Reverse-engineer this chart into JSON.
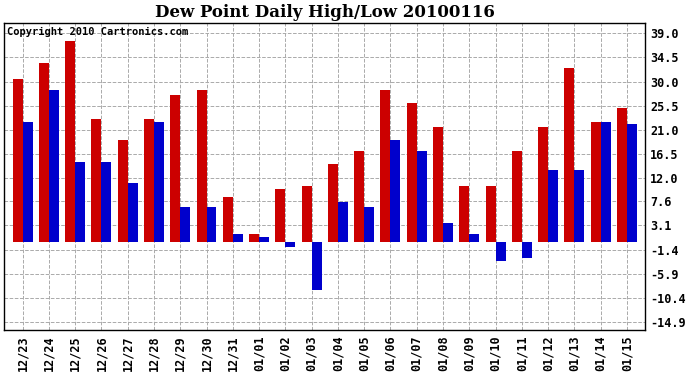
{
  "title": "Dew Point Daily High/Low 20100116",
  "copyright": "Copyright 2010 Cartronics.com",
  "dates": [
    "12/23",
    "12/24",
    "12/25",
    "12/26",
    "12/27",
    "12/28",
    "12/29",
    "12/30",
    "12/31",
    "01/01",
    "01/02",
    "01/03",
    "01/04",
    "01/05",
    "01/06",
    "01/07",
    "01/08",
    "01/09",
    "01/10",
    "01/11",
    "01/12",
    "01/13",
    "01/14",
    "01/15"
  ],
  "highs": [
    30.5,
    33.5,
    37.5,
    23.0,
    19.0,
    23.0,
    27.5,
    28.5,
    8.5,
    1.5,
    10.0,
    10.5,
    14.5,
    17.0,
    28.5,
    26.0,
    21.5,
    10.5,
    10.5,
    17.0,
    21.5,
    32.5,
    22.5,
    25.0
  ],
  "lows": [
    22.5,
    28.5,
    15.0,
    15.0,
    11.0,
    22.5,
    6.5,
    6.5,
    1.5,
    1.0,
    -1.0,
    -9.0,
    7.5,
    6.5,
    19.0,
    17.0,
    3.5,
    1.5,
    -3.5,
    -3.0,
    13.5,
    13.5,
    22.5,
    22.0
  ],
  "high_color": "#cc0000",
  "low_color": "#0000cc",
  "background_color": "#ffffff",
  "grid_color": "#aaaaaa",
  "yticks": [
    39.0,
    34.5,
    30.0,
    25.5,
    21.0,
    16.5,
    12.0,
    7.6,
    3.1,
    -1.4,
    -5.9,
    -10.4,
    -14.9
  ],
  "ylim": [
    -16.5,
    41.0
  ],
  "bar_width": 0.38,
  "title_fontsize": 12,
  "tick_fontsize": 8.5,
  "copyright_fontsize": 7.5
}
